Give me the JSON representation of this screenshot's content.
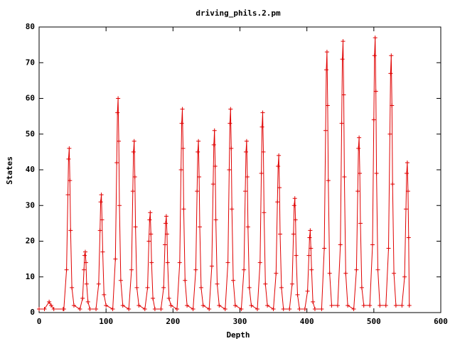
{
  "chart_data": {
    "type": "line",
    "title": "driving_phils.2.pm",
    "x_label": "Depth",
    "y_label": "States",
    "color": "#e00000",
    "markers": true,
    "xlim": [
      0,
      600
    ],
    "xticks": [
      0,
      100,
      200,
      300,
      400,
      500,
      600
    ],
    "ylim": [
      0,
      80
    ],
    "yticks": [
      0,
      10,
      20,
      30,
      40,
      50,
      60,
      70,
      80
    ],
    "x": [
      0,
      8,
      15,
      18,
      22,
      36,
      37,
      41,
      43,
      44,
      45,
      46,
      47,
      49,
      52,
      61,
      65,
      67,
      68,
      69,
      70,
      71,
      73,
      76,
      85,
      89,
      91,
      92,
      93,
      94,
      95,
      97,
      100,
      110,
      114,
      116,
      117,
      118,
      119,
      120,
      122,
      125,
      134,
      138,
      140,
      141,
      142,
      143,
      144,
      146,
      149,
      158,
      162,
      164,
      165,
      166,
      167,
      168,
      170,
      173,
      182,
      186,
      188,
      189,
      190,
      191,
      192,
      194,
      197,
      206,
      210,
      212,
      213,
      214,
      215,
      216,
      218,
      221,
      230,
      234,
      236,
      237,
      238,
      239,
      240,
      242,
      245,
      254,
      258,
      260,
      261,
      262,
      263,
      264,
      266,
      269,
      278,
      282,
      284,
      285,
      286,
      287,
      288,
      290,
      293,
      302,
      306,
      308,
      309,
      310,
      311,
      312,
      314,
      317,
      326,
      330,
      332,
      333,
      334,
      335,
      336,
      338,
      341,
      350,
      354,
      356,
      357,
      358,
      359,
      360,
      362,
      365,
      374,
      378,
      380,
      381,
      382,
      383,
      384,
      386,
      389,
      397,
      401,
      403,
      404,
      405,
      406,
      407,
      409,
      412,
      422,
      426,
      428,
      429,
      430,
      431,
      432,
      434,
      437,
      446,
      450,
      452,
      453,
      454,
      455,
      456,
      458,
      461,
      470,
      474,
      476,
      477,
      478,
      479,
      480,
      482,
      485,
      494,
      498,
      500,
      501,
      502,
      503,
      504,
      506,
      509,
      518,
      522,
      524,
      525,
      526,
      527,
      528,
      530,
      533,
      542,
      546,
      548,
      549,
      550,
      551,
      552,
      553
    ],
    "values": [
      1,
      1,
      3,
      2,
      1,
      1,
      1,
      12,
      33,
      43,
      46,
      37,
      23,
      7,
      2,
      1,
      4,
      12,
      16,
      17,
      14,
      8,
      3,
      1,
      1,
      8,
      23,
      31,
      33,
      26,
      17,
      5,
      2,
      1,
      15,
      42,
      56,
      60,
      48,
      30,
      9,
      2,
      1,
      12,
      34,
      45,
      48,
      38,
      24,
      7,
      2,
      1,
      7,
      20,
      26,
      28,
      22,
      14,
      4,
      1,
      1,
      7,
      19,
      25,
      27,
      22,
      14,
      4,
      2,
      1,
      14,
      40,
      53,
      57,
      46,
      29,
      9,
      2,
      1,
      12,
      34,
      45,
      48,
      38,
      24,
      7,
      2,
      1,
      13,
      36,
      47,
      51,
      41,
      26,
      8,
      2,
      1,
      14,
      40,
      53,
      57,
      46,
      29,
      9,
      2,
      1,
      12,
      34,
      45,
      48,
      38,
      24,
      7,
      2,
      1,
      14,
      39,
      52,
      56,
      45,
      28,
      8,
      2,
      1,
      11,
      31,
      41,
      44,
      35,
      22,
      7,
      1,
      1,
      8,
      22,
      30,
      32,
      26,
      16,
      5,
      1,
      1,
      6,
      16,
      21,
      23,
      18,
      12,
      3,
      1,
      1,
      18,
      51,
      68,
      73,
      58,
      37,
      11,
      2,
      2,
      19,
      53,
      71,
      76,
      61,
      38,
      11,
      2,
      1,
      12,
      34,
      46,
      49,
      39,
      25,
      7,
      2,
      2,
      19,
      54,
      72,
      77,
      62,
      39,
      12,
      2,
      2,
      18,
      50,
      67,
      72,
      58,
      36,
      11,
      2,
      2,
      10,
      29,
      39,
      42,
      34,
      21,
      2
    ]
  }
}
